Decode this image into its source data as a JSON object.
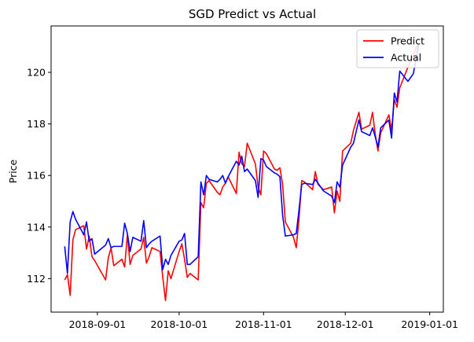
{
  "chart_data": {
    "type": "line",
    "title": "SGD Predict vs Actual",
    "xlabel": "",
    "ylabel": "Price",
    "xlim": [
      "2018-08-15",
      "2019-01-06"
    ],
    "ylim": [
      110.7,
      121.8
    ],
    "x_ticks": [
      "2018-09-01",
      "2018-10-01",
      "2018-11-01",
      "2018-12-01",
      "2019-01-01"
    ],
    "y_ticks": [
      112,
      114,
      116,
      118,
      120
    ],
    "grid": false,
    "legend": "top-right",
    "x": [
      "2018-08-20",
      "2018-08-21",
      "2018-08-22",
      "2018-08-23",
      "2018-08-24",
      "2018-08-27",
      "2018-08-28",
      "2018-08-29",
      "2018-08-30",
      "2018-08-31",
      "2018-09-04",
      "2018-09-05",
      "2018-09-06",
      "2018-09-07",
      "2018-09-10",
      "2018-09-11",
      "2018-09-12",
      "2018-09-13",
      "2018-09-14",
      "2018-09-17",
      "2018-09-18",
      "2018-09-19",
      "2018-09-20",
      "2018-09-21",
      "2018-09-24",
      "2018-09-25",
      "2018-09-26",
      "2018-09-27",
      "2018-09-28",
      "2018-10-01",
      "2018-10-02",
      "2018-10-03",
      "2018-10-04",
      "2018-10-05",
      "2018-10-08",
      "2018-10-09",
      "2018-10-10",
      "2018-10-11",
      "2018-10-12",
      "2018-10-15",
      "2018-10-16",
      "2018-10-17",
      "2018-10-18",
      "2018-10-19",
      "2018-10-22",
      "2018-10-23",
      "2018-10-24",
      "2018-10-25",
      "2018-10-26",
      "2018-10-29",
      "2018-10-30",
      "2018-10-31",
      "2018-11-01",
      "2018-11-02",
      "2018-11-05",
      "2018-11-06",
      "2018-11-07",
      "2018-11-08",
      "2018-11-09",
      "2018-11-12",
      "2018-11-13",
      "2018-11-14",
      "2018-11-15",
      "2018-11-16",
      "2018-11-19",
      "2018-11-20",
      "2018-11-21",
      "2018-11-23",
      "2018-11-26",
      "2018-11-27",
      "2018-11-28",
      "2018-11-29",
      "2018-11-30",
      "2018-12-03",
      "2018-12-04",
      "2018-12-06",
      "2018-12-07",
      "2018-12-10",
      "2018-12-11",
      "2018-12-12",
      "2018-12-13",
      "2018-12-14",
      "2018-12-17",
      "2018-12-18",
      "2018-12-19",
      "2018-12-20",
      "2018-12-21",
      "2018-12-24",
      "2018-12-26",
      "2018-12-27",
      "2018-12-28"
    ],
    "series": [
      {
        "name": "Predict",
        "color": "#ff0000",
        "values": [
          111.95,
          112.15,
          111.35,
          113.5,
          113.9,
          114.05,
          113.15,
          113.65,
          112.85,
          112.7,
          111.95,
          112.8,
          113.2,
          112.5,
          112.75,
          112.45,
          113.7,
          112.55,
          112.9,
          113.15,
          113.6,
          112.6,
          112.85,
          113.2,
          113.05,
          112.05,
          111.15,
          112.3,
          112.0,
          113.05,
          113.35,
          112.75,
          112.05,
          112.2,
          111.95,
          114.95,
          114.75,
          115.7,
          115.8,
          115.35,
          115.25,
          115.55,
          115.7,
          115.95,
          115.3,
          116.9,
          116.45,
          116.35,
          117.25,
          116.45,
          115.55,
          115.25,
          116.95,
          116.85,
          116.25,
          116.2,
          116.3,
          115.65,
          114.2,
          113.6,
          113.2,
          114.3,
          115.8,
          115.75,
          115.45,
          116.15,
          115.65,
          115.45,
          115.55,
          114.55,
          115.4,
          115.0,
          116.95,
          117.25,
          117.75,
          118.45,
          117.8,
          117.95,
          118.45,
          117.6,
          116.95,
          117.65,
          118.35,
          117.75,
          118.95,
          118.65,
          119.4,
          120.2,
          120.65,
          120.95,
          121.1
        ]
      },
      {
        "name": "Actual",
        "color": "#0000ff",
        "values": [
          113.25,
          112.2,
          114.2,
          114.6,
          114.3,
          113.7,
          114.2,
          113.45,
          113.55,
          112.95,
          113.3,
          113.55,
          113.2,
          113.25,
          113.25,
          114.15,
          113.75,
          113.05,
          113.6,
          113.45,
          114.25,
          113.2,
          113.35,
          113.45,
          113.65,
          112.35,
          112.75,
          112.55,
          112.9,
          113.45,
          113.5,
          113.75,
          112.55,
          112.55,
          112.85,
          115.75,
          115.25,
          116.0,
          115.85,
          115.75,
          115.85,
          116.0,
          115.7,
          115.95,
          116.55,
          116.4,
          116.75,
          116.15,
          116.25,
          115.8,
          115.15,
          116.65,
          116.6,
          116.35,
          116.1,
          116.05,
          115.95,
          114.45,
          113.65,
          113.7,
          113.75,
          114.65,
          115.65,
          115.7,
          115.65,
          115.85,
          115.7,
          115.4,
          115.2,
          114.95,
          115.75,
          115.55,
          116.4,
          117.1,
          117.25,
          118.15,
          117.7,
          117.55,
          117.85,
          117.5,
          117.1,
          117.85,
          118.15,
          117.45,
          119.2,
          118.85,
          120.05,
          119.65,
          119.95,
          120.55,
          121.1
        ]
      }
    ]
  }
}
